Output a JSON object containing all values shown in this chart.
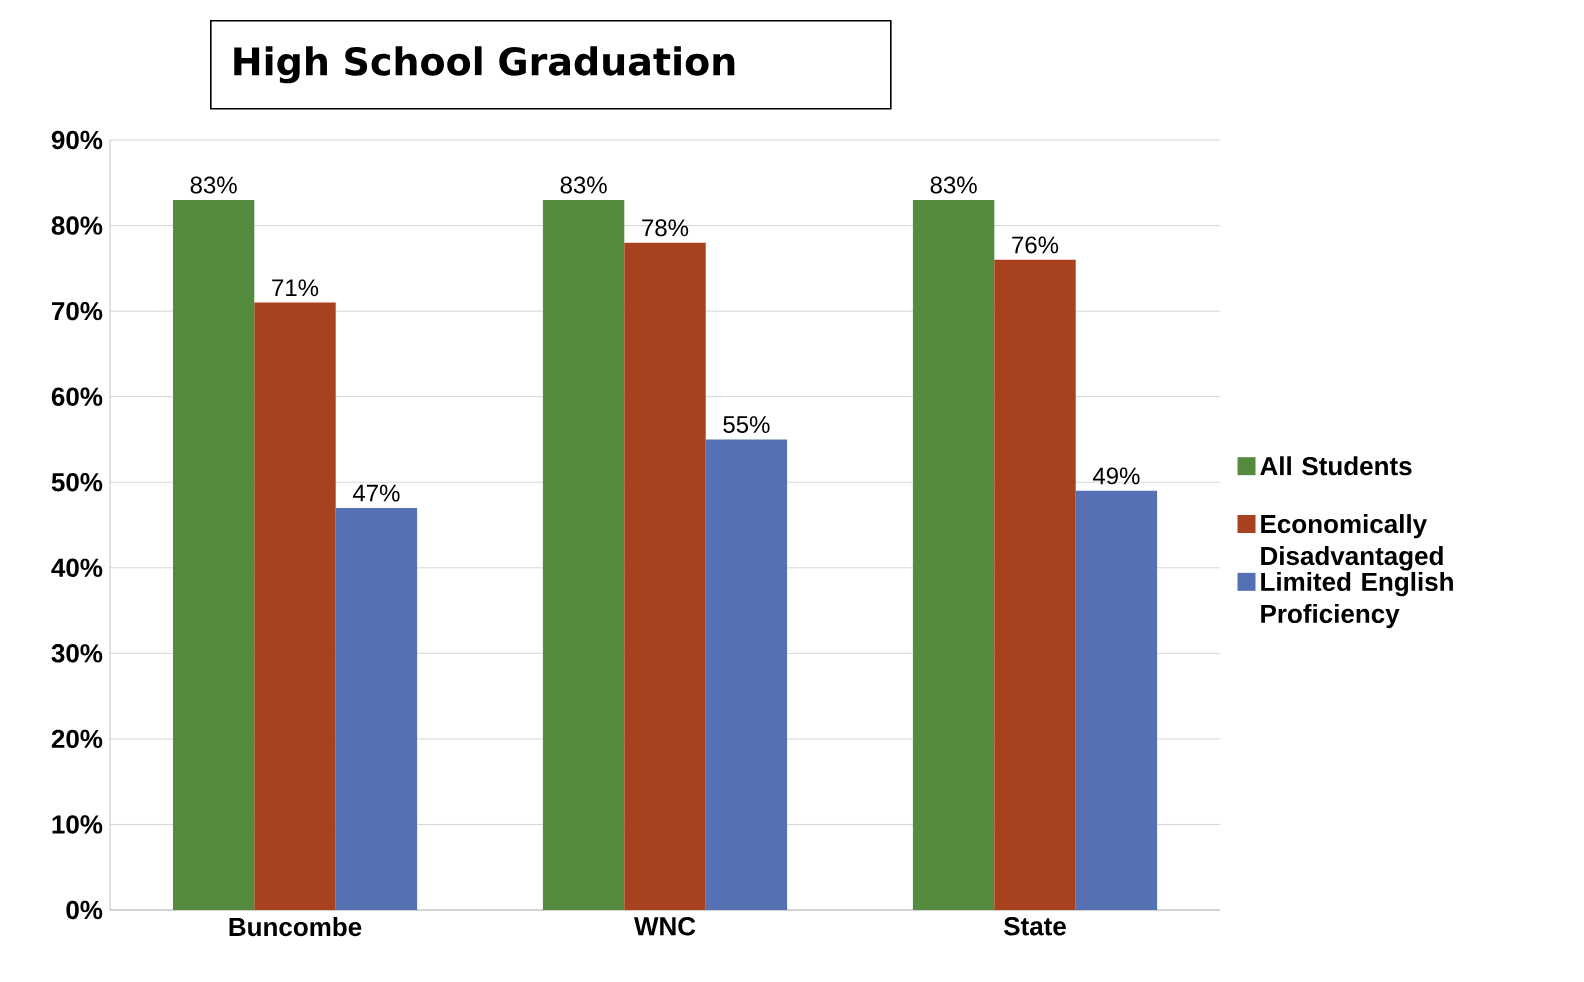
{
  "chart_data": {
    "type": "bar",
    "title": "High School Graduation",
    "categories": [
      "Buncombe",
      "WNC",
      "State"
    ],
    "series": [
      {
        "name": "All Students",
        "color": "#558b3f",
        "values": [
          83,
          83,
          83
        ],
        "value_labels": [
          "83%",
          "83%",
          "83%"
        ]
      },
      {
        "name": "Economically Disadvantaged",
        "color": "#a8411d",
        "values": [
          71,
          78,
          76
        ],
        "value_labels": [
          "71%",
          "78%",
          "76%"
        ]
      },
      {
        "name": "Limited English Proficiency",
        "color": "#5671b3",
        "values": [
          47,
          55,
          49
        ],
        "value_labels": [
          "47%",
          "55%",
          "49%"
        ]
      }
    ],
    "ylim": [
      0,
      90
    ],
    "yticks": [
      {
        "value": 0,
        "label": "0%"
      },
      {
        "value": 10,
        "label": "10%"
      },
      {
        "value": 20,
        "label": "20%"
      },
      {
        "value": 30,
        "label": "30%"
      },
      {
        "value": 40,
        "label": "40%"
      },
      {
        "value": 50,
        "label": "50%"
      },
      {
        "value": 60,
        "label": "60%"
      },
      {
        "value": 70,
        "label": "70%"
      },
      {
        "value": 80,
        "label": "80%"
      },
      {
        "value": 90,
        "label": "90%"
      }
    ],
    "grid": "y",
    "legend": "right"
  }
}
